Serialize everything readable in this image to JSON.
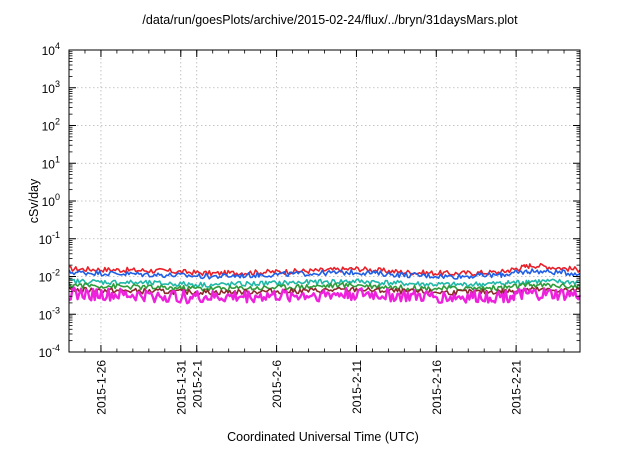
{
  "chart_data": {
    "type": "line",
    "title": "/data/run/goesPlots/archive/2015-02-24/flux/../bryn/31daysMars.plot",
    "xlabel": "Coordinated Universal Time (UTC)",
    "ylabel": "cSv/day",
    "yscale": "log",
    "ylim": [
      0.0001,
      10000
    ],
    "y_ticks": [
      {
        "value": 10000,
        "base": "10",
        "exp": "4"
      },
      {
        "value": 1000,
        "base": "10",
        "exp": "3"
      },
      {
        "value": 100,
        "base": "10",
        "exp": "2"
      },
      {
        "value": 10,
        "base": "10",
        "exp": "1"
      },
      {
        "value": 1,
        "base": "10",
        "exp": "0"
      },
      {
        "value": 0.1,
        "base": "10",
        "exp": "-1"
      },
      {
        "value": 0.01,
        "base": "10",
        "exp": "-2"
      },
      {
        "value": 0.001,
        "base": "10",
        "exp": "-3"
      },
      {
        "value": 0.0001,
        "base": "10",
        "exp": "-4"
      }
    ],
    "xlim": [
      "2015-01-24",
      "2015-02-25"
    ],
    "x_ticks": [
      {
        "label": "2015-1-26",
        "date": "2015-01-26"
      },
      {
        "label": "2015-1-31",
        "date": "2015-01-31"
      },
      {
        "label": "2015-2-1",
        "date": "2015-02-01"
      },
      {
        "label": "2015-2-6",
        "date": "2015-02-06"
      },
      {
        "label": "2015-2-11",
        "date": "2015-02-11"
      },
      {
        "label": "2015-2-16",
        "date": "2015-02-16"
      },
      {
        "label": "2015-2-21",
        "date": "2015-02-21"
      }
    ],
    "grid": true,
    "series": [
      {
        "color": "#e8202a",
        "x": [
          "2015-01-24",
          "2015-01-27",
          "2015-01-30",
          "2015-02-02",
          "2015-02-05",
          "2015-02-08",
          "2015-02-11",
          "2015-02-14",
          "2015-02-17",
          "2015-02-20",
          "2015-02-22",
          "2015-02-25"
        ],
        "values": [
          0.016,
          0.015,
          0.014,
          0.012,
          0.013,
          0.014,
          0.016,
          0.013,
          0.012,
          0.013,
          0.02,
          0.015
        ]
      },
      {
        "color": "#1f5fe6",
        "x": [
          "2015-01-24",
          "2015-01-27",
          "2015-01-30",
          "2015-02-02",
          "2015-02-05",
          "2015-02-08",
          "2015-02-11",
          "2015-02-14",
          "2015-02-17",
          "2015-02-20",
          "2015-02-22",
          "2015-02-25"
        ],
        "values": [
          0.013,
          0.012,
          0.011,
          0.01,
          0.011,
          0.012,
          0.013,
          0.011,
          0.01,
          0.011,
          0.014,
          0.012
        ]
      },
      {
        "color": "#1fb8a8",
        "x": [
          "2015-01-24",
          "2015-01-27",
          "2015-01-30",
          "2015-02-02",
          "2015-02-05",
          "2015-02-08",
          "2015-02-11",
          "2015-02-14",
          "2015-02-17",
          "2015-02-20",
          "2015-02-22",
          "2015-02-25"
        ],
        "values": [
          0.0075,
          0.007,
          0.0065,
          0.006,
          0.0065,
          0.007,
          0.0075,
          0.0065,
          0.006,
          0.0065,
          0.0075,
          0.007
        ]
      },
      {
        "color": "#2e9b3a",
        "x": [
          "2015-01-24",
          "2015-01-27",
          "2015-01-30",
          "2015-02-02",
          "2015-02-05",
          "2015-02-08",
          "2015-02-11",
          "2015-02-14",
          "2015-02-17",
          "2015-02-20",
          "2015-02-22",
          "2015-02-25"
        ],
        "values": [
          0.006,
          0.0055,
          0.005,
          0.0048,
          0.005,
          0.0055,
          0.006,
          0.005,
          0.0048,
          0.005,
          0.006,
          0.0055
        ]
      },
      {
        "color": "#8a2a2a",
        "x": [
          "2015-01-24",
          "2015-01-27",
          "2015-01-30",
          "2015-02-02",
          "2015-02-05",
          "2015-02-08",
          "2015-02-11",
          "2015-02-14",
          "2015-02-17",
          "2015-02-20",
          "2015-02-22",
          "2015-02-25"
        ],
        "values": [
          0.0045,
          0.0042,
          0.004,
          0.0038,
          0.004,
          0.0042,
          0.0045,
          0.004,
          0.0038,
          0.004,
          0.0045,
          0.0042
        ]
      },
      {
        "color": "#ee22dd",
        "x": [
          "2015-01-24",
          "2015-01-27",
          "2015-01-30",
          "2015-02-02",
          "2015-02-05",
          "2015-02-08",
          "2015-02-11",
          "2015-02-14",
          "2015-02-17",
          "2015-02-20",
          "2015-02-22",
          "2015-02-25"
        ],
        "values": [
          0.0035,
          0.0032,
          0.003,
          0.0028,
          0.003,
          0.0032,
          0.0035,
          0.003,
          0.0028,
          0.003,
          0.0034,
          0.0032
        ]
      }
    ]
  }
}
